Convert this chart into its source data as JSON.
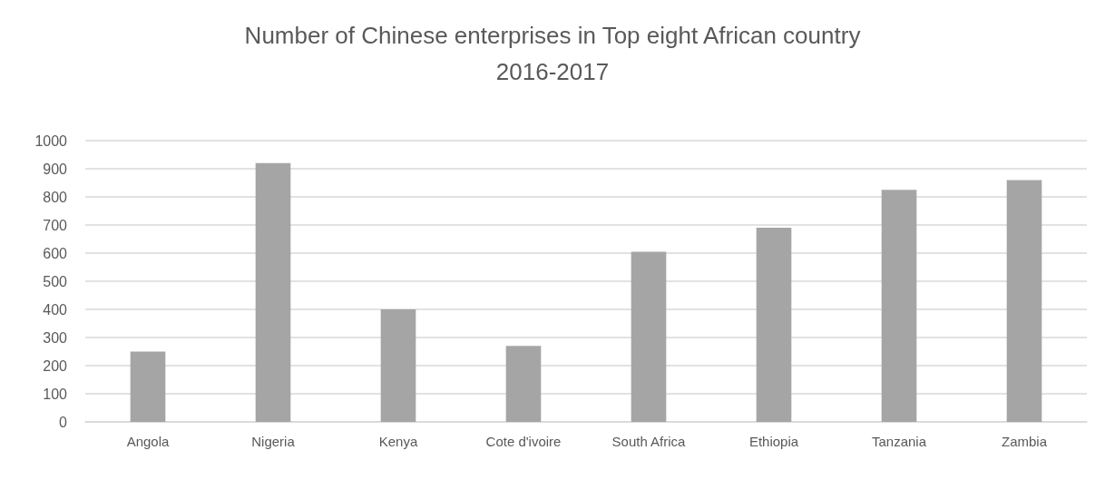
{
  "chart_data": {
    "type": "bar",
    "title": "Number of Chinese enterprises in Top eight African country\n2016-2017",
    "categories": [
      "Angola",
      "Nigeria",
      "Kenya",
      "Cote d'ivoire",
      "South Africa",
      "Ethiopia",
      "Tanzania",
      "Zambia"
    ],
    "values": [
      250,
      920,
      400,
      270,
      605,
      690,
      825,
      860
    ],
    "color": "#a5a5a5",
    "ylim": [
      0,
      1000
    ],
    "yticks": [
      0,
      100,
      200,
      300,
      400,
      500,
      600,
      700,
      800,
      900,
      1000
    ],
    "grid": "y"
  }
}
